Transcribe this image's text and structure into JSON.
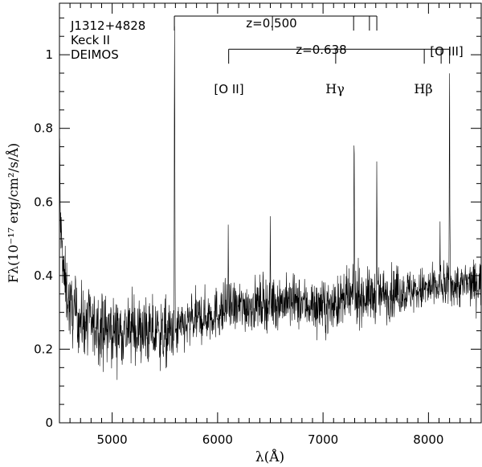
{
  "chart_data": {
    "type": "line",
    "title": "",
    "xlabel": "λ(Å)",
    "ylabel": "Fλ(10⁻¹⁷ erg/cm²/s/Å)",
    "xlim": [
      4500,
      8500
    ],
    "ylim": [
      0,
      1.14
    ],
    "x_ticks": [
      5000,
      6000,
      7000,
      8000
    ],
    "x_tick_labels": [
      "5000",
      "6000",
      "7000",
      "8000"
    ],
    "y_ticks": [
      0,
      0.2,
      0.4,
      0.6,
      0.8,
      1
    ],
    "y_tick_labels": [
      "0",
      "0.2",
      "0.4",
      "0.6",
      "0.8",
      "1"
    ],
    "grid": false,
    "info_lines": [
      "J1312+4828",
      "Keck II",
      "DEIMOS"
    ],
    "continuum": {
      "x": [
        4500,
        4540,
        4600,
        4700,
        4850,
        5000,
        5200,
        5400,
        5590,
        5610,
        5800,
        6000,
        6300,
        6600,
        6900,
        7000,
        7300,
        7600,
        7900,
        8200,
        8500
      ],
      "y": [
        0.58,
        0.4,
        0.31,
        0.28,
        0.26,
        0.25,
        0.25,
        0.24,
        0.24,
        0.25,
        0.28,
        0.3,
        0.32,
        0.33,
        0.32,
        0.31,
        0.34,
        0.35,
        0.36,
        0.37,
        0.38
      ]
    },
    "emission_lines": [
      {
        "x": 4503,
        "peak": 0.74
      },
      {
        "x": 5592,
        "peak": 1.05
      },
      {
        "x": 6101,
        "peak": 0.5
      },
      {
        "x": 6500,
        "peak": 0.49
      },
      {
        "x": 7295,
        "peak": 0.79
      },
      {
        "x": 7510,
        "peak": 0.66
      },
      {
        "x": 8110,
        "peak": 0.5
      },
      {
        "x": 8200,
        "peak": 0.96
      }
    ],
    "redshift_systems": [
      {
        "label": "z=0.500",
        "bar_y": 1.105,
        "x_start": 5590,
        "x_end": 7510,
        "tick_x": [
          5590,
          6520,
          7290,
          7440,
          7510
        ]
      },
      {
        "label": "z=0.638",
        "bar_y": 1.015,
        "x_start": 6105,
        "x_end": 8200,
        "tick_x": [
          6105,
          7120,
          7960,
          8120,
          8200
        ]
      }
    ],
    "line_labels": [
      "[O II]",
      "Hγ",
      "Hβ",
      "[O III]"
    ]
  }
}
